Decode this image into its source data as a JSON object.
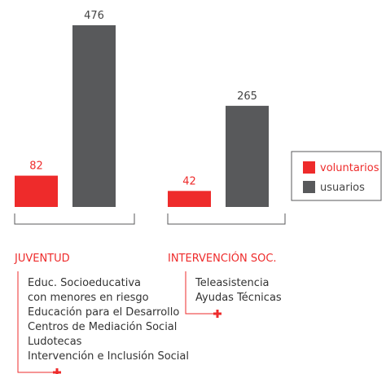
{
  "chart_data": {
    "type": "bar",
    "categories": [
      "JUVENTUD",
      "INTERVENCIÓN SOC."
    ],
    "series": [
      {
        "name": "voluntarios",
        "color": "#ee2b2b",
        "values": [
          82,
          42
        ]
      },
      {
        "name": "usuarios",
        "color": "#58595b",
        "values": [
          476,
          265
        ]
      }
    ],
    "category_items": [
      [
        "Educ. Socioeducativa",
        "con menores en riesgo",
        "Educación para el Desarrollo",
        "Centros de Mediación Social",
        "Ludotecas",
        "Intervención e Inclusión Social"
      ],
      [
        "Teleasistencia",
        "Ayudas Técnicas"
      ]
    ]
  }
}
